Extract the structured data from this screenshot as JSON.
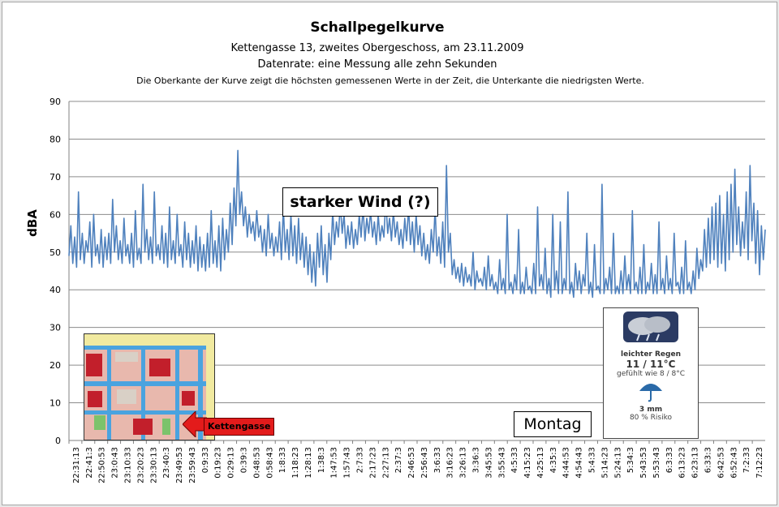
{
  "chart_data": {
    "type": "line",
    "title": "Schallpegelkurve",
    "subtitle_lines": [
      "Kettengasse 13, zweites Obergeschoss, am 23.11.2009",
      "Datenrate: eine Messung alle zehn Sekunden",
      "Die Oberkante der Kurve zeigt die höchsten gemessenen Werte  in der Zeit, die Unterkante  die niedrigsten Werte."
    ],
    "ylabel": "dBA",
    "xlabel": "",
    "ylim": [
      0,
      90
    ],
    "yticks": [
      0,
      10,
      20,
      30,
      40,
      50,
      60,
      70,
      80,
      90
    ],
    "grid": true,
    "x_tick_labels": [
      "22:31:13",
      "22:41:3",
      "22:50:53",
      "23:0:43",
      "23:10:33",
      "23:20:23",
      "23:30:13",
      "23:40:3",
      "23:49:53",
      "23:59:43",
      "0:9:33",
      "0:19:23",
      "0:29:13",
      "0:39:3",
      "0:48:53",
      "0:58:43",
      "1:8:33",
      "1:18:23",
      "1:28:13",
      "1:38:3",
      "1:47:53",
      "1:57:43",
      "2:7:33",
      "2:17:23",
      "2:27:13",
      "2:37:3",
      "2:46:53",
      "2:56:43",
      "3:6:33",
      "3:16:23",
      "3:26:13",
      "3:36:3",
      "3:45:53",
      "3:55:43",
      "4:5:33",
      "4:15:23",
      "4:25:13",
      "4:35:3",
      "4:44:53",
      "4:54:43",
      "5:4:33",
      "5:14:23",
      "5:24:13",
      "5:34:3",
      "5:43:53",
      "5:53:43",
      "6:3:33",
      "6:13:23",
      "6:23:13",
      "6:33:3",
      "6:42:53",
      "6:52:43",
      "7:2:33",
      "7:12:23"
    ],
    "series": [
      {
        "color": "#4f81bd",
        "values": [
          49,
          57,
          47,
          54,
          46,
          66,
          48,
          55,
          47,
          53,
          50,
          58,
          46,
          60,
          49,
          52,
          47,
          56,
          46,
          54,
          48,
          55,
          47,
          64,
          50,
          57,
          48,
          53,
          47,
          59,
          49,
          52,
          47,
          55,
          46,
          61,
          48,
          51,
          47,
          68,
          50,
          56,
          48,
          54,
          47,
          66,
          49,
          52,
          48,
          57,
          47,
          55,
          46,
          62,
          48,
          53,
          47,
          60,
          49,
          52,
          46,
          58,
          48,
          55,
          46,
          53,
          47,
          57,
          45,
          54,
          46,
          52,
          45,
          55,
          46,
          61,
          47,
          53,
          46,
          57,
          45,
          59,
          48,
          56,
          50,
          63,
          52,
          67,
          57,
          77,
          60,
          66,
          57,
          62,
          54,
          60,
          55,
          58,
          53,
          61,
          54,
          57,
          50,
          56,
          49,
          60,
          51,
          55,
          49,
          54,
          50,
          58,
          48,
          62,
          50,
          56,
          48,
          60,
          49,
          57,
          47,
          59,
          48,
          55,
          46,
          54,
          44,
          52,
          42,
          50,
          41,
          55,
          46,
          57,
          44,
          52,
          42,
          55,
          48,
          61,
          52,
          58,
          54,
          63,
          55,
          60,
          51,
          57,
          52,
          58,
          51,
          56,
          52,
          60,
          54,
          62,
          53,
          59,
          55,
          61,
          54,
          58,
          52,
          60,
          53,
          57,
          54,
          64,
          55,
          59,
          53,
          61,
          54,
          58,
          52,
          56,
          51,
          59,
          53,
          62,
          52,
          58,
          50,
          60,
          52,
          57,
          49,
          55,
          48,
          52,
          47,
          56,
          50,
          62,
          49,
          54,
          47,
          58,
          46,
          73,
          50,
          55,
          44,
          48,
          43,
          46,
          42,
          47,
          41,
          46,
          42,
          44,
          41,
          50,
          40,
          45,
          42,
          43,
          41,
          46,
          40,
          49,
          41,
          44,
          40,
          42,
          39,
          48,
          40,
          43,
          39,
          60,
          40,
          42,
          39,
          44,
          40,
          56,
          39,
          42,
          39,
          46,
          40,
          41,
          39,
          47,
          39,
          62,
          41,
          44,
          40,
          51,
          39,
          43,
          38,
          60,
          40,
          45,
          39,
          58,
          39,
          43,
          40,
          66,
          39,
          42,
          38,
          47,
          40,
          45,
          39,
          44,
          41,
          55,
          39,
          42,
          38,
          52,
          40,
          41,
          39,
          68,
          39,
          43,
          40,
          46,
          39,
          55,
          39,
          41,
          39,
          45,
          39,
          49,
          40,
          44,
          39,
          61,
          40,
          42,
          39,
          46,
          39,
          52,
          39,
          42,
          40,
          47,
          39,
          44,
          39,
          58,
          40,
          43,
          39,
          49,
          40,
          43,
          39,
          55,
          41,
          42,
          39,
          46,
          39,
          53,
          40,
          42,
          39,
          45,
          40,
          51,
          43,
          48,
          45,
          56,
          46,
          59,
          47,
          62,
          48,
          63,
          46,
          65,
          47,
          60,
          45,
          66,
          48,
          68,
          50,
          72,
          52,
          62,
          49,
          58,
          51,
          66,
          48,
          73,
          53,
          63,
          47,
          61,
          44,
          57,
          48,
          56
        ]
      }
    ],
    "annotations": [
      "starker Wind (?)",
      "Montag"
    ]
  },
  "weather": {
    "condition": "leichter Regen",
    "temp": "11 / 11°C",
    "feels": "gefühlt wie 8 / 8°C",
    "rain": "3 mm",
    "risk": "80 % Risiko",
    "cloud_icon": "rain-cloud-icon",
    "umbrella_icon": "umbrella-icon"
  },
  "map": {
    "label": "Kettengasse",
    "arrow_color": "#e31b1b"
  }
}
